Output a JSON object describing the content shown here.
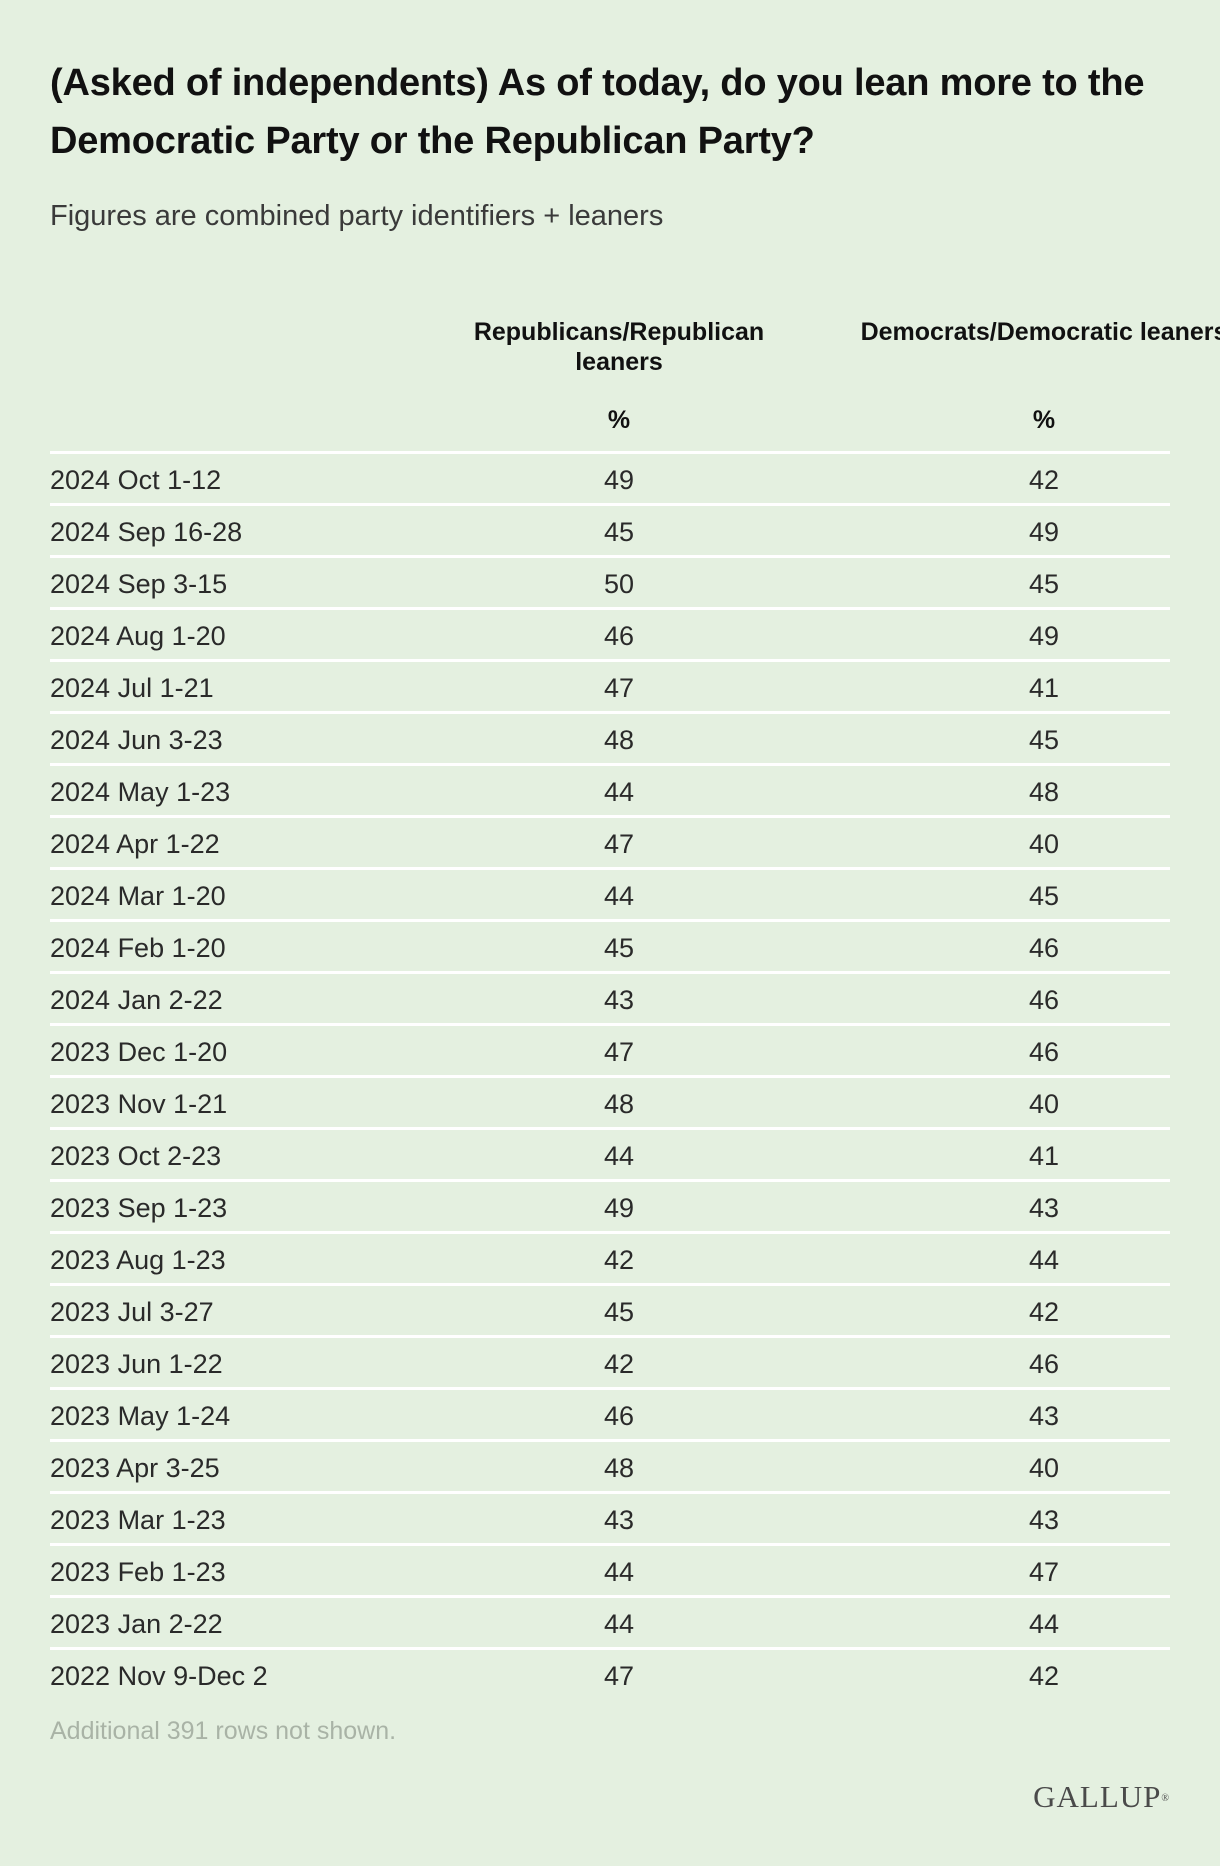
{
  "header": {
    "title": "(Asked of independents) As of today, do you lean more to the Democratic Party or the Republican Party?",
    "subtitle": "Figures are combined party identifiers + leaners"
  },
  "table": {
    "col_rep": "Republicans/Republican leaners",
    "col_dem": "Democrats/Democratic leaners",
    "unit_rep": "%",
    "unit_dem": "%"
  },
  "chart_data": {
    "type": "table",
    "title": "(Asked of independents) As of today, do you lean more to the Democratic Party or the Republican Party?",
    "subtitle": "Figures are combined party identifiers + leaners",
    "columns": [
      "",
      "Republicans/Republican leaners",
      "Democrats/Democratic leaners"
    ],
    "units": [
      "",
      "%",
      "%"
    ],
    "rows": [
      [
        "2024 Oct 1-12",
        "49",
        "42"
      ],
      [
        "2024 Sep 16-28",
        "45",
        "49"
      ],
      [
        "2024 Sep 3-15",
        "50",
        "45"
      ],
      [
        "2024 Aug 1-20",
        "46",
        "49"
      ],
      [
        "2024 Jul 1-21",
        "47",
        "41"
      ],
      [
        "2024 Jun 3-23",
        "48",
        "45"
      ],
      [
        "2024 May 1-23",
        "44",
        "48"
      ],
      [
        "2024 Apr 1-22",
        "47",
        "40"
      ],
      [
        "2024 Mar 1-20",
        "44",
        "45"
      ],
      [
        "2024 Feb 1-20",
        "45",
        "46"
      ],
      [
        "2024 Jan 2-22",
        "43",
        "46"
      ],
      [
        "2023 Dec 1-20",
        "47",
        "46"
      ],
      [
        "2023 Nov 1-21",
        "48",
        "40"
      ],
      [
        "2023 Oct 2-23",
        "44",
        "41"
      ],
      [
        "2023 Sep 1-23",
        "49",
        "43"
      ],
      [
        "2023 Aug 1-23",
        "42",
        "44"
      ],
      [
        "2023 Jul 3-27",
        "45",
        "42"
      ],
      [
        "2023 Jun 1-22",
        "42",
        "46"
      ],
      [
        "2023 May 1-24",
        "46",
        "43"
      ],
      [
        "2023 Apr 3-25",
        "48",
        "40"
      ],
      [
        "2023 Mar 1-23",
        "43",
        "43"
      ],
      [
        "2023 Feb 1-23",
        "44",
        "47"
      ],
      [
        "2023 Jan 2-22",
        "44",
        "44"
      ],
      [
        "2022 Nov 9-Dec 2",
        "47",
        "42"
      ]
    ]
  },
  "footer": {
    "note": "Additional 391 rows not shown.",
    "logo": "GALLUP",
    "logo_mark": "®"
  },
  "colors": {
    "background": "#e4f0e0",
    "divider": "#ffffff",
    "note": "#a9b3a6"
  }
}
